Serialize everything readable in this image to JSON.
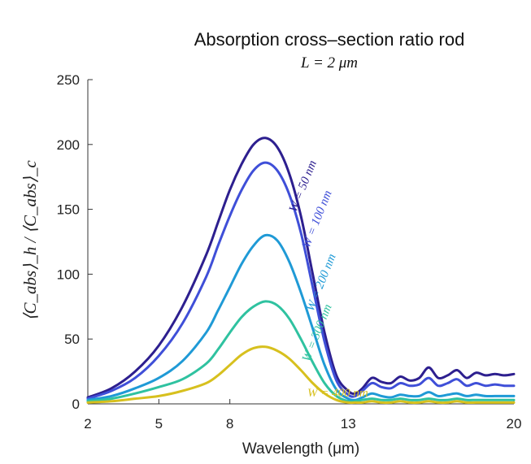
{
  "chart_data": {
    "type": "line",
    "title": "Absorption cross–section ratio rod",
    "subtitle": "L = 2 μm",
    "xlabel": "Wavelength (μm)",
    "ylabel": "⟨C_abs⟩_h / ⟨C_abs⟩_c",
    "xlim": [
      2,
      20
    ],
    "ylim": [
      0,
      250
    ],
    "xticks": [
      2,
      5,
      8,
      13,
      20
    ],
    "yticks": [
      0,
      50,
      100,
      150,
      200,
      250
    ],
    "grid": false,
    "x": [
      2,
      3,
      4,
      5,
      6,
      7,
      7.5,
      8,
      8.5,
      9,
      9.5,
      10,
      10.5,
      11,
      11.5,
      12,
      12.5,
      13,
      13.3,
      13.6,
      14,
      14.4,
      14.8,
      15.2,
      15.6,
      16,
      16.4,
      16.8,
      17.2,
      17.6,
      18,
      18.4,
      18.8,
      19.2,
      19.6,
      20
    ],
    "series": [
      {
        "name": "W = 50 nm",
        "color": "#2d1f8f",
        "values": [
          5,
          12,
          25,
          45,
          75,
          115,
          140,
          165,
          185,
          200,
          205,
          198,
          178,
          145,
          100,
          55,
          22,
          10,
          8,
          12,
          20,
          17,
          16,
          21,
          18,
          20,
          28,
          20,
          22,
          26,
          20,
          24,
          22,
          23,
          22,
          23
        ]
      },
      {
        "name": "W = 100 nm",
        "color": "#3f4fd8",
        "values": [
          4,
          10,
          20,
          37,
          62,
          98,
          122,
          145,
          165,
          180,
          186,
          180,
          162,
          132,
          90,
          48,
          18,
          7,
          6,
          10,
          16,
          13,
          12,
          16,
          14,
          15,
          20,
          14,
          16,
          19,
          14,
          16,
          14,
          15,
          14,
          14
        ]
      },
      {
        "name": "W = 200 nm",
        "color": "#1f9ad6",
        "values": [
          3,
          6,
          12,
          20,
          33,
          55,
          72,
          90,
          108,
          122,
          130,
          126,
          110,
          86,
          58,
          30,
          11,
          4,
          3,
          5,
          8,
          6,
          5,
          7,
          6,
          6,
          9,
          6,
          7,
          8,
          6,
          7,
          6,
          6,
          6,
          6
        ]
      },
      {
        "name": "W = 300 nm",
        "color": "#2fc2a0",
        "values": [
          2,
          4,
          8,
          13,
          19,
          31,
          42,
          55,
          67,
          75,
          79,
          76,
          66,
          50,
          32,
          16,
          6,
          2,
          2,
          3,
          4,
          3,
          3,
          4,
          3,
          3,
          4,
          3,
          3,
          4,
          3,
          3,
          3,
          3,
          3,
          3
        ]
      },
      {
        "name": "W = 400 nm",
        "color": "#d7c01e",
        "values": [
          1,
          2,
          4,
          6,
          10,
          16,
          22,
          30,
          38,
          43,
          44,
          41,
          35,
          26,
          16,
          8,
          3,
          1,
          1,
          1,
          2,
          1,
          1,
          2,
          1,
          1,
          2,
          1,
          1,
          2,
          1,
          1,
          1,
          1,
          1,
          1
        ]
      }
    ]
  }
}
